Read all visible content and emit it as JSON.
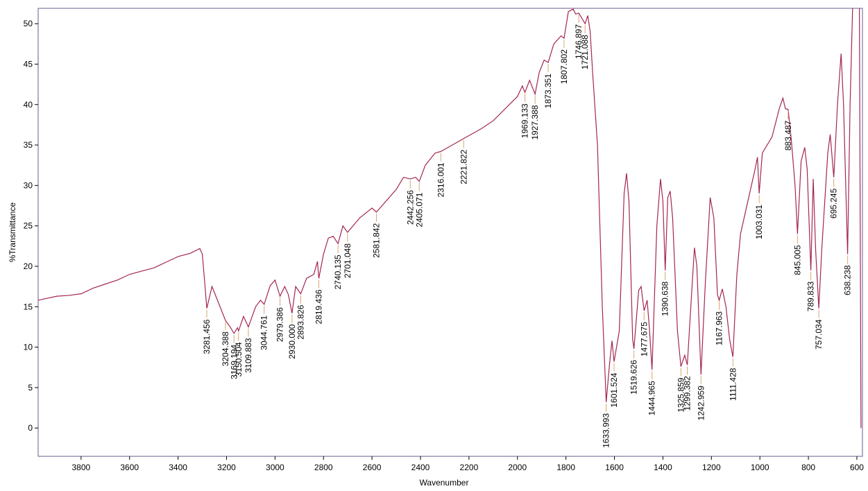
{
  "chart_data": {
    "type": "line",
    "xlabel": "Wavenumber",
    "ylabel": "%Transmittance",
    "xlim": [
      3977,
      577
    ],
    "ylim": [
      -3.5,
      51.9
    ],
    "xticks": [
      3800,
      3600,
      3400,
      3200,
      3000,
      2800,
      2600,
      2400,
      2200,
      2000,
      1800,
      1600,
      1400,
      1200,
      1000,
      800,
      600
    ],
    "yticks": [
      0,
      5,
      10,
      15,
      20,
      25,
      30,
      35,
      40,
      45,
      50
    ],
    "color": "#a3264f",
    "leader_color": "#d9a66e",
    "x": [
      3977,
      3900,
      3850,
      3800,
      3750,
      3700,
      3650,
      3600,
      3550,
      3500,
      3450,
      3400,
      3350,
      3310,
      3300,
      3290,
      3281.456,
      3260,
      3240,
      3204.388,
      3185,
      3169.194,
      3155,
      3150.504,
      3130,
      3109.883,
      3080,
      3060,
      3044.761,
      3020,
      3000,
      2979.386,
      2960,
      2945,
      2930,
      2915,
      2893.826,
      2870,
      2840,
      2825,
      2819.436,
      2800,
      2780,
      2760,
      2740.135,
      2720,
      2701.048,
      2650,
      2600,
      2581.842,
      2500,
      2470,
      2442.256,
      2420,
      2405.071,
      2380,
      2340,
      2316.001,
      2280,
      2221.822,
      2150,
      2100,
      2050,
      2000,
      1980,
      1969.133,
      1950,
      1927.388,
      1910,
      1890,
      1873.351,
      1850,
      1820,
      1807.802,
      1790,
      1770,
      1760,
      1746.897,
      1735,
      1721.088,
      1710,
      1700,
      1690,
      1670,
      1650,
      1633.993,
      1620,
      1610,
      1601.524,
      1580,
      1560,
      1550,
      1540,
      1525,
      1519.626,
      1500,
      1490,
      1477.675,
      1465,
      1455,
      1444.965,
      1425,
      1410,
      1400,
      1390.638,
      1380,
      1370,
      1360,
      1340,
      1325.859,
      1310,
      1299.382,
      1285,
      1270,
      1260,
      1242.959,
      1225,
      1205,
      1190,
      1175,
      1167.963,
      1155,
      1140,
      1125,
      1111.428,
      1095,
      1080,
      1050,
      1020,
      1010,
      1003.031,
      990,
      950,
      920,
      905,
      895,
      883.487,
      870,
      855,
      845.005,
      830,
      815,
      805,
      789.833,
      780,
      770,
      757.034,
      745,
      720,
      710,
      695.245,
      680,
      665,
      655,
      638.238,
      628,
      615,
      590,
      583
    ],
    "values": [
      15.8,
      16.3,
      16.4,
      16.6,
      17.3,
      17.8,
      18.3,
      19.0,
      19.4,
      19.8,
      20.5,
      21.2,
      21.6,
      22.2,
      21.5,
      18,
      14.8,
      17.5,
      16,
      13.3,
      12.5,
      11.7,
      12.4,
      12.0,
      13.8,
      12.5,
      15,
      15.8,
      15.3,
      17.6,
      18.3,
      16.3,
      17.5,
      16.5,
      14.2,
      17.5,
      16.6,
      18.5,
      19,
      20.6,
      18.5,
      21.5,
      23.5,
      23.7,
      22.8,
      25,
      24.2,
      26,
      27.2,
      26.7,
      29.5,
      31,
      30.8,
      31,
      30.5,
      32.5,
      34,
      34.2,
      34.8,
      35.8,
      37,
      38,
      39.5,
      41,
      42.3,
      41.5,
      43,
      41.3,
      44,
      45.5,
      45.2,
      47.5,
      48.5,
      48.2,
      51.5,
      51.8,
      51.2,
      51.3,
      50.7,
      50,
      51,
      49,
      44,
      35,
      15,
      3.2,
      8,
      10.8,
      8.2,
      12,
      29,
      31.5,
      28,
      11,
      9.8,
      17,
      17.5,
      14.5,
      15.8,
      12,
      7.2,
      25,
      30.8,
      28,
      19.5,
      28.5,
      29.3,
      26,
      12,
      7.6,
      9,
      7.8,
      15,
      22.3,
      20,
      6.6,
      18,
      28.5,
      26,
      16.5,
      15.8,
      17.2,
      15,
      11,
      8.8,
      19,
      24,
      28,
      32,
      33.5,
      29,
      34,
      36,
      39.5,
      40.8,
      39.5,
      39.4,
      35.5,
      30,
      24,
      33,
      34.7,
      32,
      19.5,
      30.8,
      22,
      14.8,
      22,
      34,
      36.3,
      31,
      40,
      46.3,
      40,
      21.5,
      40,
      55,
      55,
      0
    ],
    "peaks": [
      {
        "x": 3281.456,
        "label": "3281.456",
        "y": 14.8
      },
      {
        "x": 3204.388,
        "label": "3204.388",
        "y": 13.3
      },
      {
        "x": 3169.194,
        "label": "3169.194",
        "y": 11.7
      },
      {
        "x": 3150.504,
        "label": "3150.504",
        "y": 12.0
      },
      {
        "x": 3109.883,
        "label": "3109.883",
        "y": 12.5
      },
      {
        "x": 3044.761,
        "label": "3044.761",
        "y": 15.3
      },
      {
        "x": 2979.386,
        "label": "2979.386",
        "y": 16.3
      },
      {
        "x": 2930.0,
        "label": "2930.000",
        "y": 14.2
      },
      {
        "x": 2893.826,
        "label": "2893.826",
        "y": 16.6
      },
      {
        "x": 2819.436,
        "label": "2819.436",
        "y": 18.5
      },
      {
        "x": 2740.135,
        "label": "2740.135",
        "y": 22.8
      },
      {
        "x": 2701.048,
        "label": "2701.048",
        "y": 24.2
      },
      {
        "x": 2581.842,
        "label": "2581.842",
        "y": 26.7
      },
      {
        "x": 2442.256,
        "label": "2442.256",
        "y": 30.8
      },
      {
        "x": 2405.071,
        "label": "2405.071",
        "y": 30.5
      },
      {
        "x": 2316.001,
        "label": "2316.001",
        "y": 34.2
      },
      {
        "x": 2221.822,
        "label": "2221.822",
        "y": 35.8
      },
      {
        "x": 1969.133,
        "label": "1969.133",
        "y": 41.5
      },
      {
        "x": 1927.388,
        "label": "1927.388",
        "y": 41.3
      },
      {
        "x": 1873.351,
        "label": "1873.351",
        "y": 45.2
      },
      {
        "x": 1807.802,
        "label": "1807.802",
        "y": 48.2
      },
      {
        "x": 1746.897,
        "label": "1746.897",
        "y": 51.3
      },
      {
        "x": 1721.088,
        "label": "1721.088",
        "y": 50
      },
      {
        "x": 1633.993,
        "label": "1633.993",
        "y": 3.2
      },
      {
        "x": 1601.524,
        "label": "1601.524",
        "y": 8.2
      },
      {
        "x": 1519.626,
        "label": "1519.626",
        "y": 9.8
      },
      {
        "x": 1477.675,
        "label": "1477.675",
        "y": 14.5
      },
      {
        "x": 1444.965,
        "label": "1444.965",
        "y": 7.2
      },
      {
        "x": 1390.638,
        "label": "1390.638",
        "y": 19.5
      },
      {
        "x": 1325.859,
        "label": "1325.859",
        "y": 7.6
      },
      {
        "x": 1299.382,
        "label": "1299.382",
        "y": 7.8
      },
      {
        "x": 1242.959,
        "label": "1242.959",
        "y": 6.6
      },
      {
        "x": 1167.963,
        "label": "1167.963",
        "y": 15.8
      },
      {
        "x": 1111.428,
        "label": "1111.428",
        "y": 8.8
      },
      {
        "x": 1003.031,
        "label": "1003.031",
        "y": 29
      },
      {
        "x": 883.487,
        "label": "883.487",
        "y": 39.4
      },
      {
        "x": 845.005,
        "label": "845.005",
        "y": 24
      },
      {
        "x": 789.833,
        "label": "789.833",
        "y": 19.5
      },
      {
        "x": 757.034,
        "label": "757.034",
        "y": 14.8
      },
      {
        "x": 695.245,
        "label": "695.245",
        "y": 31
      },
      {
        "x": 638.238,
        "label": "638.238",
        "y": 21.5
      }
    ]
  }
}
